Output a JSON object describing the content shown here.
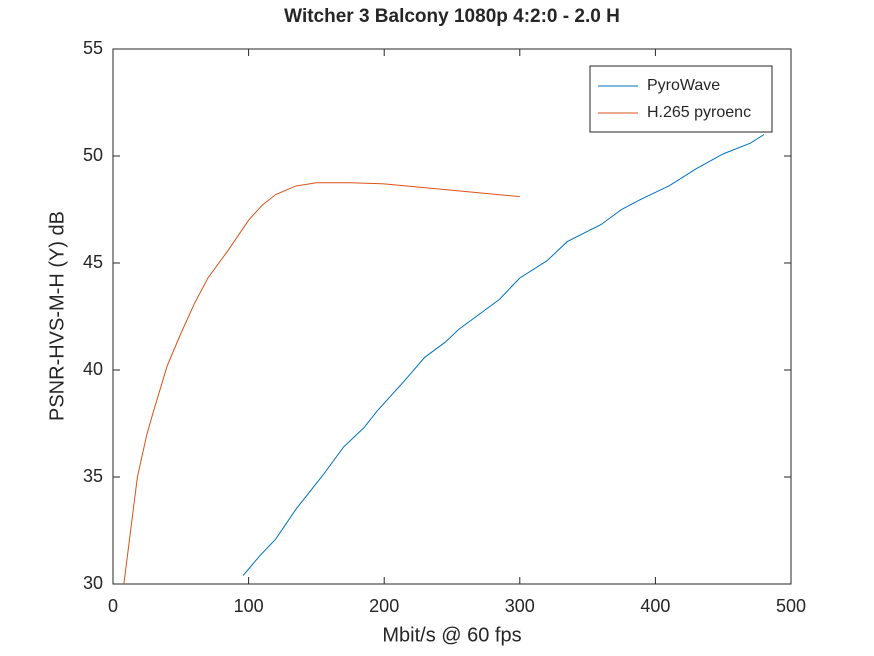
{
  "chart_data": {
    "type": "line",
    "title": "Witcher 3 Balcony 1080p 4:2:0 - 2.0 H",
    "x_label": "Mbit/s @ 60 fps",
    "y_label": "PSNR-HVS-M-H (Y) dB",
    "xlim": [
      0,
      500
    ],
    "xticks": [
      0,
      100,
      200,
      300,
      400,
      500
    ],
    "ylim": [
      30,
      55
    ],
    "yticks": [
      30,
      35,
      40,
      45,
      50,
      55
    ],
    "legend": "northeast",
    "series": [
      {
        "name": "PyroWave",
        "color": "#0072bd",
        "x": [
          96,
          108,
          120,
          135,
          155,
          170,
          185,
          195,
          215,
          230,
          245,
          255,
          270,
          285,
          300,
          320,
          335,
          360,
          375,
          390,
          410,
          430,
          450,
          470,
          480
        ],
        "values": [
          30.4,
          31.3,
          32.1,
          33.5,
          35.1,
          36.4,
          37.3,
          38.1,
          39.5,
          40.6,
          41.3,
          41.9,
          42.6,
          43.3,
          44.3,
          45.1,
          46.0,
          46.8,
          47.5,
          48.0,
          48.6,
          49.4,
          50.1,
          50.6,
          51.0
        ]
      },
      {
        "name": "H.265 pyroenc",
        "color": "#d95319",
        "x": [
          8,
          12,
          18,
          25,
          30,
          40,
          50,
          60,
          70,
          85,
          100,
          110,
          120,
          135,
          150,
          175,
          200,
          250,
          300
        ],
        "values": [
          30.0,
          32.0,
          35.0,
          37.0,
          38.1,
          40.2,
          41.7,
          43.1,
          44.3,
          45.6,
          47.0,
          47.7,
          48.2,
          48.6,
          48.75,
          48.75,
          48.7,
          48.4,
          48.1
        ]
      }
    ]
  }
}
